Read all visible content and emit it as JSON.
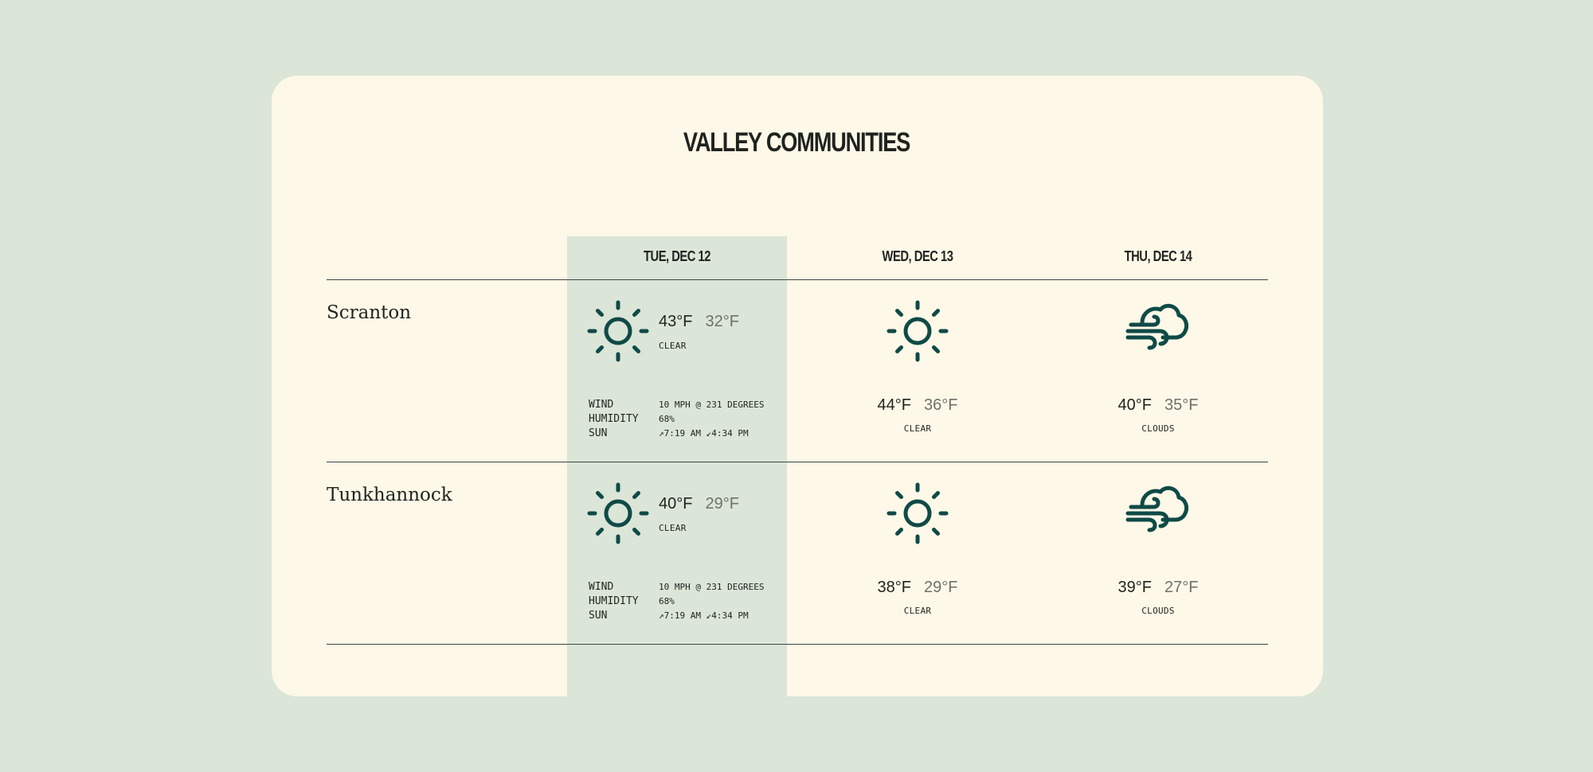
{
  "title": "VALLEY COMMUNITIES",
  "days": [
    "TUE, DEC 12",
    "WED, DEC 13",
    "THU, DEC 14"
  ],
  "colors": {
    "background": "#dbe5d8",
    "card": "#fdf8e7",
    "icon": "#0f4a47",
    "highlight_column": "#dbe5d8"
  },
  "details_labels": {
    "wind": "WIND",
    "humidity": "HUMIDITY",
    "sun": "SUN"
  },
  "cities": [
    {
      "name": "Scranton",
      "today": {
        "icon": "sun-icon",
        "high": "43°F",
        "low": "32°F",
        "condition": "CLEAR",
        "wind": "10 MPH @ 231 DEGREES",
        "humidity": "68%",
        "sun": "↗7:19 AM  ↙4:34 PM"
      },
      "forecast": [
        {
          "icon": "sun-icon",
          "high": "44°F",
          "low": "36°F",
          "condition": "CLEAR"
        },
        {
          "icon": "wind-cloud-icon",
          "high": "40°F",
          "low": "35°F",
          "condition": "CLOUDS"
        }
      ]
    },
    {
      "name": "Tunkhannock",
      "today": {
        "icon": "sun-icon",
        "high": "40°F",
        "low": "29°F",
        "condition": "CLEAR",
        "wind": "10 MPH @ 231 DEGREES",
        "humidity": "68%",
        "sun": "↗7:19 AM  ↙4:34 PM"
      },
      "forecast": [
        {
          "icon": "sun-icon",
          "high": "38°F",
          "low": "29°F",
          "condition": "CLEAR"
        },
        {
          "icon": "wind-cloud-icon",
          "high": "39°F",
          "low": "27°F",
          "condition": "CLOUDS"
        }
      ]
    }
  ]
}
